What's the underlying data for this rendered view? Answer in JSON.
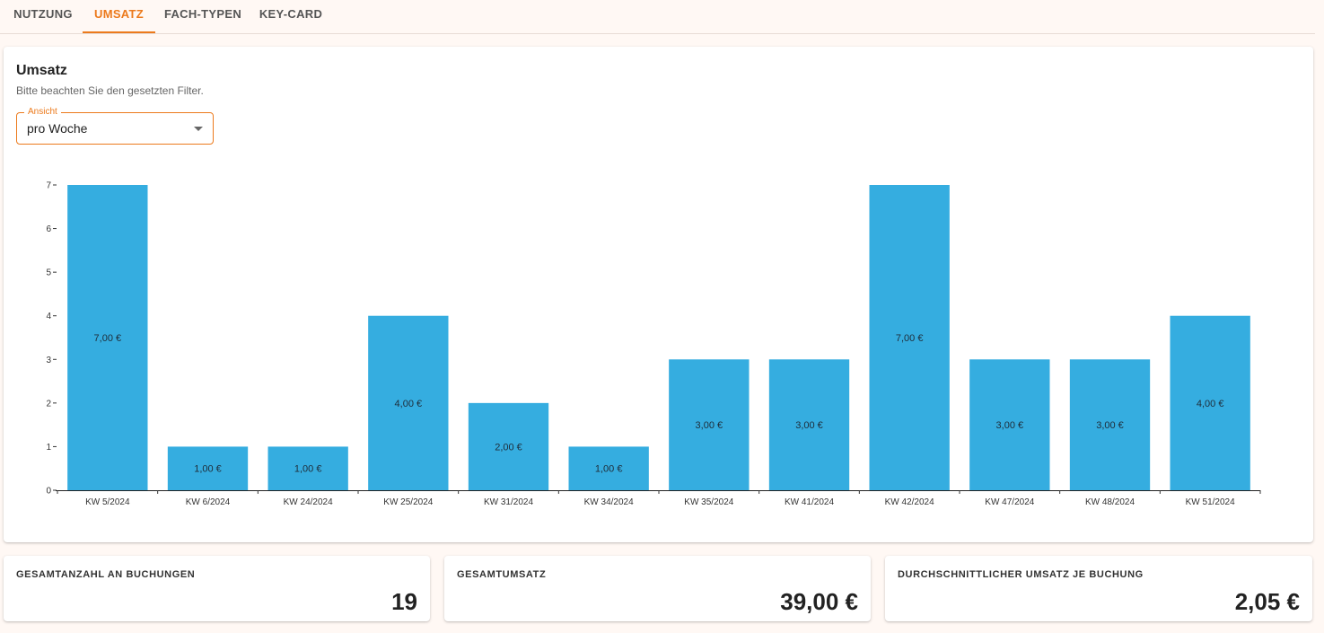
{
  "tabs": [
    {
      "label": "NUTZUNG"
    },
    {
      "label": "UMSATZ"
    },
    {
      "label": "FACH-TYPEN"
    },
    {
      "label": "KEY-CARD"
    }
  ],
  "colors": {
    "accent": "#ec7a1c",
    "bar": "#35ade0",
    "background": "#fff8f4"
  },
  "card": {
    "title": "Umsatz",
    "subtitle": "Bitte beachten Sie den gesetzten Filter."
  },
  "view_select": {
    "label": "Ansicht",
    "value": "pro Woche"
  },
  "chart_data": {
    "type": "bar",
    "categories": [
      "KW 5/2024",
      "KW 6/2024",
      "KW 24/2024",
      "KW 25/2024",
      "KW 31/2024",
      "KW 34/2024",
      "KW 35/2024",
      "KW 41/2024",
      "KW 42/2024",
      "KW 47/2024",
      "KW 48/2024",
      "KW 51/2024"
    ],
    "values": [
      7,
      1,
      1,
      4,
      2,
      1,
      3,
      3,
      7,
      3,
      3,
      4
    ],
    "data_labels": [
      "7,00 €",
      "1,00 €",
      "1,00 €",
      "4,00 €",
      "2,00 €",
      "1,00 €",
      "3,00 €",
      "3,00 €",
      "7,00 €",
      "3,00 €",
      "3,00 €",
      "4,00 €"
    ],
    "yticks": [
      0,
      1,
      2,
      3,
      4,
      5,
      6,
      7
    ],
    "ylim": [
      0,
      7
    ],
    "grid": false,
    "legend": "none"
  },
  "stats": [
    {
      "label": "GESAMTANZAHL AN BUCHUNGEN",
      "value": "19"
    },
    {
      "label": "GESAMTUMSATZ",
      "value": "39,00 €"
    },
    {
      "label": "DURCHSCHNITTLICHER UMSATZ JE BUCHUNG",
      "value": "2,05 €"
    }
  ]
}
